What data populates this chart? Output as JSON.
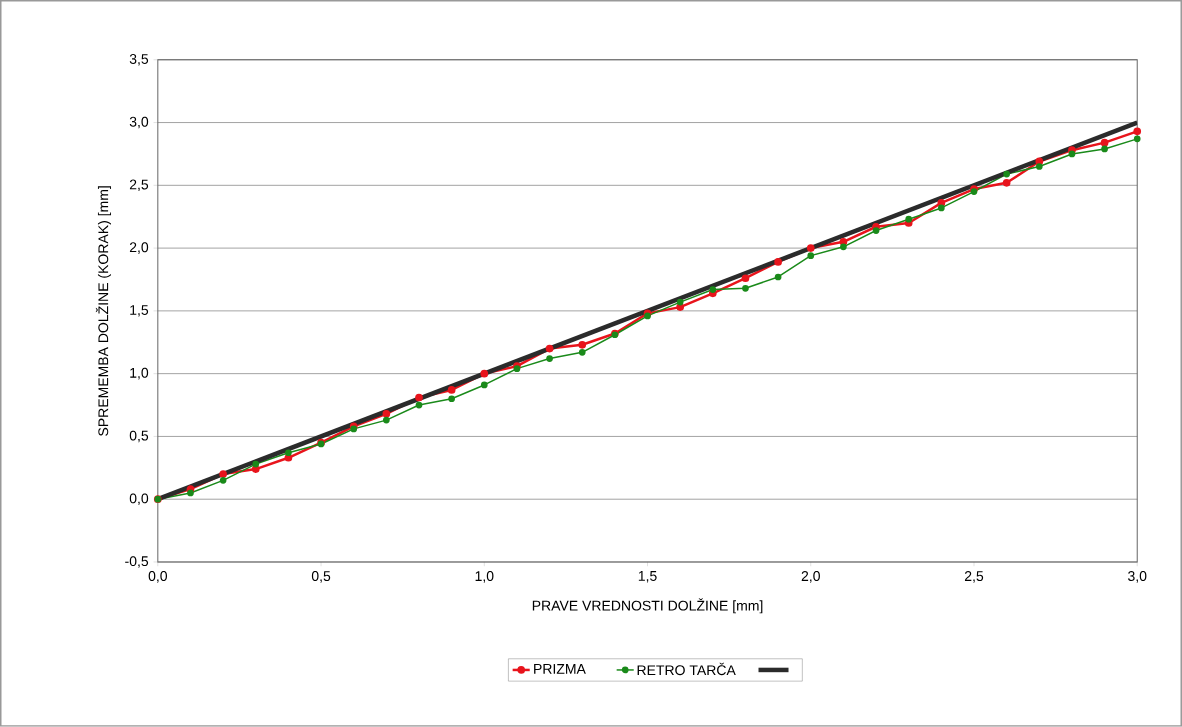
{
  "chart_data": {
    "type": "line",
    "xlabel": "PRAVE VREDNOSTI DOLŽINE [mm]",
    "ylabel": "SPREMEMBA DOLŽINE (KORAK) [mm]",
    "x": [
      0,
      0.1,
      0.2,
      0.3,
      0.4,
      0.5,
      0.6,
      0.7,
      0.8,
      0.9,
      1.0,
      1.1,
      1.2,
      1.3,
      1.4,
      1.5,
      1.6,
      1.7,
      1.8,
      1.9,
      2.0,
      2.1,
      2.2,
      2.3,
      2.4,
      2.5,
      2.6,
      2.7,
      2.8,
      2.9,
      3.0
    ],
    "series": [
      {
        "name": "PRIZMA",
        "color": "#e8141c",
        "marker": "circle",
        "values": [
          0,
          0.08,
          0.2,
          0.24,
          0.33,
          0.45,
          0.58,
          0.68,
          0.81,
          0.87,
          1.0,
          1.06,
          1.2,
          1.23,
          1.32,
          1.48,
          1.53,
          1.64,
          1.76,
          1.89,
          2.0,
          2.05,
          2.17,
          2.2,
          2.36,
          2.47,
          2.52,
          2.69,
          2.78,
          2.84,
          2.93
        ]
      },
      {
        "name": "RETRO TARČA",
        "color": "#1a8a1a",
        "marker": "circle",
        "values": [
          0,
          0.05,
          0.15,
          0.28,
          0.37,
          0.44,
          0.56,
          0.63,
          0.75,
          0.8,
          0.91,
          1.04,
          1.12,
          1.17,
          1.31,
          1.46,
          1.57,
          1.67,
          1.68,
          1.77,
          1.94,
          2.01,
          2.14,
          2.23,
          2.32,
          2.45,
          2.59,
          2.65,
          2.75,
          2.79,
          2.87
        ]
      },
      {
        "color": "#2b2b2b",
        "marker": "none",
        "x": [
          0,
          3.0
        ],
        "values": [
          0,
          3.0
        ]
      }
    ],
    "xlim": [
      0,
      3
    ],
    "ylim": [
      -0.5,
      3.5
    ],
    "xticks": [
      {
        "value": 0,
        "label": "0,0"
      },
      {
        "value": 0.5,
        "label": "0,5"
      },
      {
        "value": 1,
        "label": "1,0"
      },
      {
        "value": 1.5,
        "label": "1,5"
      },
      {
        "value": 2,
        "label": "2,0"
      },
      {
        "value": 2.5,
        "label": "2,5"
      },
      {
        "value": 3,
        "label": "3,0"
      }
    ],
    "yticks": [
      {
        "value": -0.5,
        "label": "-0,5"
      },
      {
        "value": 0,
        "label": "0,0"
      },
      {
        "value": 0.5,
        "label": "0,5"
      },
      {
        "value": 1,
        "label": "1,0"
      },
      {
        "value": 1.5,
        "label": "1,5"
      },
      {
        "value": 2,
        "label": "2,0"
      },
      {
        "value": 2.5,
        "label": "2,5"
      },
      {
        "value": 3,
        "label": "3,0"
      },
      {
        "value": 3.5,
        "label": "3,5"
      }
    ],
    "grid": "y",
    "legend": "bottom"
  }
}
